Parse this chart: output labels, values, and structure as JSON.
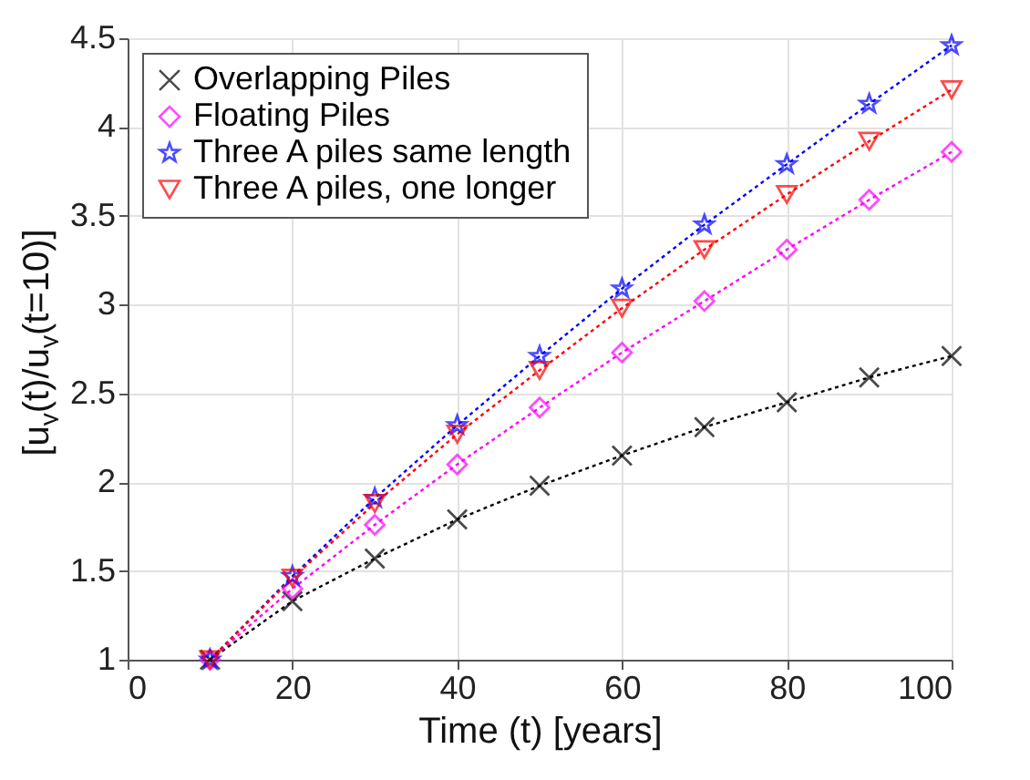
{
  "chart_data": {
    "type": "line",
    "xlabel": "Time (t) [years]",
    "ylabel": "[u$_{y}$(t)/u$_{y}$(t=10)]",
    "x": [
      10,
      20,
      30,
      40,
      50,
      60,
      70,
      80,
      90,
      100
    ],
    "series": [
      {
        "name": "Overlapping Piles",
        "color": "#000000",
        "marker": "cross",
        "values": [
          1,
          1.33,
          1.57,
          1.79,
          1.98,
          2.15,
          2.31,
          2.45,
          2.59,
          2.71
        ]
      },
      {
        "name": "Floating Piles",
        "color": "#ff00ff",
        "marker": "diamond",
        "values": [
          1,
          1.4,
          1.76,
          2.1,
          2.42,
          2.73,
          3.02,
          3.31,
          3.59,
          3.86
        ]
      },
      {
        "name": "Three A piles same length",
        "color": "#0000ff",
        "marker": "star",
        "values": [
          1,
          1.47,
          1.91,
          2.32,
          2.71,
          3.09,
          3.45,
          3.79,
          4.13,
          4.46
        ]
      },
      {
        "name": "Three A piles, one longer",
        "color": "#ff0000",
        "marker": "triangle",
        "values": [
          1,
          1.46,
          1.88,
          2.27,
          2.63,
          2.98,
          3.31,
          3.62,
          3.92,
          4.21
        ]
      }
    ],
    "xlim": [
      0,
      100
    ],
    "xticks": [
      0,
      20,
      40,
      60,
      80,
      100
    ],
    "ylim": [
      1,
      4.5
    ],
    "yticks": [
      1,
      1.5,
      2,
      2.5,
      3,
      3.5,
      4,
      4.5
    ],
    "grid": true,
    "legend": "top left",
    "line_style": "dotted"
  }
}
